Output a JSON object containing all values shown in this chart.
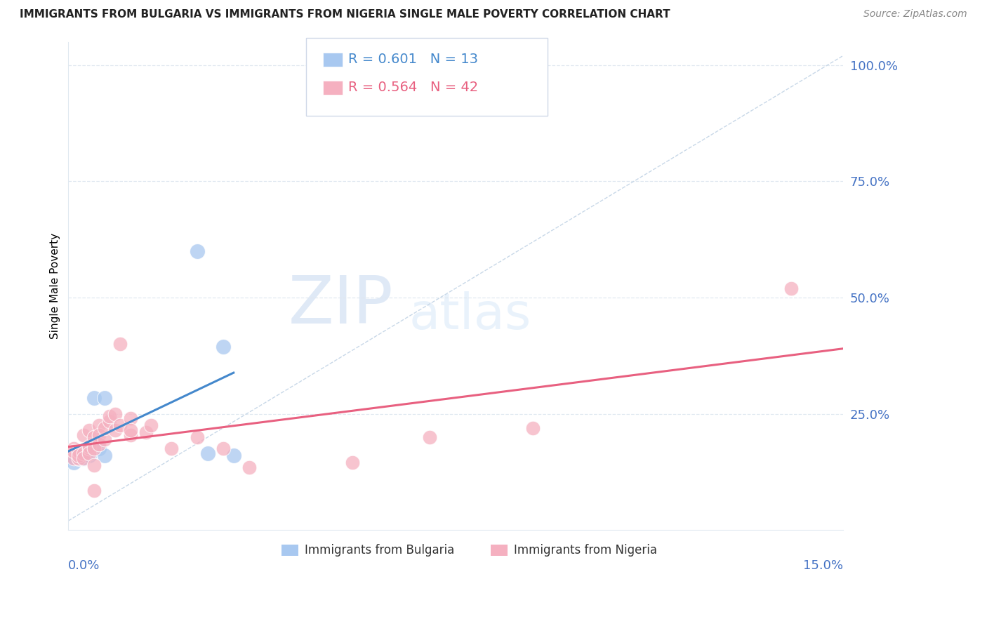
{
  "title": "IMMIGRANTS FROM BULGARIA VS IMMIGRANTS FROM NIGERIA SINGLE MALE POVERTY CORRELATION CHART",
  "source": "Source: ZipAtlas.com",
  "ylabel": "Single Male Poverty",
  "ytick_labels": [
    "100.0%",
    "75.0%",
    "50.0%",
    "25.0%"
  ],
  "ytick_vals": [
    1.0,
    0.75,
    0.5,
    0.25
  ],
  "legend1_r": "0.601",
  "legend1_n": "13",
  "legend2_r": "0.564",
  "legend2_n": "42",
  "legend1_label": "Immigrants from Bulgaria",
  "legend2_label": "Immigrants from Nigeria",
  "blue_color": "#a8c8f0",
  "pink_color": "#f5b0c0",
  "blue_line_color": "#4488cc",
  "pink_line_color": "#e86080",
  "ref_line_color": "#c8d8e8",
  "blue_scatter": [
    [
      0.001,
      0.155
    ],
    [
      0.001,
      0.145
    ],
    [
      0.002,
      0.155
    ],
    [
      0.003,
      0.155
    ],
    [
      0.004,
      0.16
    ],
    [
      0.005,
      0.285
    ],
    [
      0.006,
      0.175
    ],
    [
      0.007,
      0.285
    ],
    [
      0.007,
      0.16
    ],
    [
      0.025,
      0.6
    ],
    [
      0.027,
      0.165
    ],
    [
      0.03,
      0.395
    ],
    [
      0.032,
      0.16
    ]
  ],
  "pink_scatter": [
    [
      0.001,
      0.175
    ],
    [
      0.001,
      0.155
    ],
    [
      0.001,
      0.17
    ],
    [
      0.002,
      0.165
    ],
    [
      0.002,
      0.155
    ],
    [
      0.002,
      0.17
    ],
    [
      0.002,
      0.16
    ],
    [
      0.003,
      0.165
    ],
    [
      0.003,
      0.155
    ],
    [
      0.003,
      0.205
    ],
    [
      0.004,
      0.175
    ],
    [
      0.004,
      0.215
    ],
    [
      0.004,
      0.18
    ],
    [
      0.004,
      0.165
    ],
    [
      0.005,
      0.2
    ],
    [
      0.005,
      0.175
    ],
    [
      0.005,
      0.14
    ],
    [
      0.005,
      0.085
    ],
    [
      0.006,
      0.225
    ],
    [
      0.006,
      0.205
    ],
    [
      0.006,
      0.185
    ],
    [
      0.007,
      0.195
    ],
    [
      0.007,
      0.22
    ],
    [
      0.008,
      0.235
    ],
    [
      0.008,
      0.245
    ],
    [
      0.009,
      0.25
    ],
    [
      0.009,
      0.215
    ],
    [
      0.01,
      0.4
    ],
    [
      0.01,
      0.225
    ],
    [
      0.012,
      0.24
    ],
    [
      0.012,
      0.205
    ],
    [
      0.012,
      0.215
    ],
    [
      0.015,
      0.21
    ],
    [
      0.016,
      0.225
    ],
    [
      0.02,
      0.175
    ],
    [
      0.025,
      0.2
    ],
    [
      0.03,
      0.175
    ],
    [
      0.035,
      0.135
    ],
    [
      0.055,
      0.145
    ],
    [
      0.07,
      0.2
    ],
    [
      0.09,
      0.22
    ],
    [
      0.14,
      0.52
    ]
  ],
  "watermark_zip": "ZIP",
  "watermark_atlas": "atlas",
  "xmin": 0.0,
  "xmax": 0.15,
  "ymin": 0.0,
  "ymax": 1.05,
  "grid_color": "#e0e8f0",
  "grid_vals": [
    0.25,
    0.5,
    0.75,
    1.0
  ]
}
